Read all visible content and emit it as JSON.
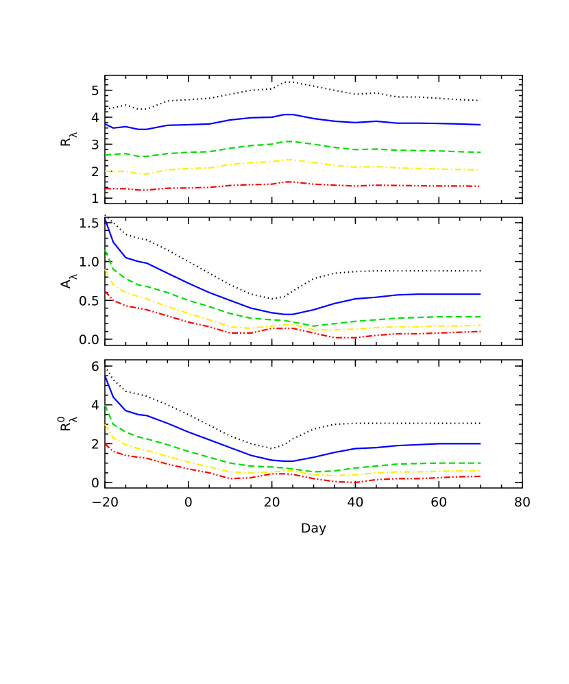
{
  "chart_data": [
    {
      "type": "line",
      "ylabel": {
        "text": "R",
        "sub": "λ"
      },
      "xlim": [
        -20,
        80
      ],
      "xticks": [
        -20,
        0,
        20,
        40,
        60,
        80
      ],
      "x_minor": 4,
      "show_xtick_labels": false,
      "ylim": [
        0.8,
        5.55
      ],
      "yticks": [
        1,
        2,
        3,
        4,
        5
      ],
      "y_minor": 5,
      "x": [
        -20,
        -18,
        -15,
        -12,
        -10,
        -5,
        0,
        5,
        10,
        15,
        20,
        23,
        25,
        30,
        35,
        40,
        45,
        50,
        55,
        60,
        65,
        70
      ],
      "series": [
        {
          "color": "#000000",
          "dash": "dotted",
          "values": [
            4.3,
            4.35,
            4.45,
            4.3,
            4.3,
            4.6,
            4.65,
            4.7,
            4.85,
            5.0,
            5.05,
            5.3,
            5.3,
            5.15,
            5.0,
            4.85,
            4.9,
            4.75,
            4.75,
            4.7,
            4.65,
            4.62
          ]
        },
        {
          "color": "#0000ff",
          "dash": "solid",
          "values": [
            3.75,
            3.6,
            3.65,
            3.55,
            3.55,
            3.7,
            3.72,
            3.75,
            3.9,
            3.98,
            4.0,
            4.1,
            4.1,
            3.95,
            3.85,
            3.8,
            3.85,
            3.78,
            3.78,
            3.77,
            3.75,
            3.72
          ]
        },
        {
          "color": "#00dd00",
          "dash": "dashed",
          "values": [
            2.6,
            2.62,
            2.65,
            2.55,
            2.55,
            2.65,
            2.7,
            2.72,
            2.85,
            2.95,
            3.0,
            3.1,
            3.1,
            3.0,
            2.88,
            2.8,
            2.82,
            2.78,
            2.76,
            2.75,
            2.72,
            2.7
          ]
        },
        {
          "color": "#ffee00",
          "dash": "dashdot",
          "values": [
            2.0,
            1.98,
            2.0,
            1.9,
            1.9,
            2.05,
            2.1,
            2.12,
            2.25,
            2.32,
            2.35,
            2.42,
            2.42,
            2.32,
            2.22,
            2.15,
            2.17,
            2.12,
            2.1,
            2.08,
            2.06,
            2.05
          ]
        },
        {
          "color": "#ff0000",
          "dash": "dashdotdot",
          "values": [
            1.35,
            1.35,
            1.35,
            1.3,
            1.3,
            1.37,
            1.38,
            1.4,
            1.47,
            1.5,
            1.52,
            1.6,
            1.6,
            1.52,
            1.48,
            1.45,
            1.48,
            1.47,
            1.46,
            1.45,
            1.45,
            1.44
          ]
        }
      ]
    },
    {
      "type": "line",
      "ylabel": {
        "text": "A",
        "sub": "λ"
      },
      "xlim": [
        -20,
        80
      ],
      "xticks": [
        -20,
        0,
        20,
        40,
        60,
        80
      ],
      "x_minor": 4,
      "show_xtick_labels": false,
      "ylim": [
        -0.08,
        1.57
      ],
      "yticks": [
        {
          "value": 0,
          "label": "0.0"
        },
        0.5,
        {
          "value": 1,
          "label": "1.0"
        },
        1.5
      ],
      "y_minor": 5,
      "x": [
        -20,
        -18,
        -15,
        -12,
        -10,
        -5,
        0,
        5,
        10,
        15,
        20,
        23,
        25,
        30,
        35,
        40,
        45,
        50,
        55,
        60,
        65,
        70
      ],
      "series": [
        {
          "color": "#000000",
          "dash": "dotted",
          "values": [
            1.6,
            1.5,
            1.35,
            1.3,
            1.28,
            1.15,
            1.0,
            0.85,
            0.7,
            0.58,
            0.52,
            0.55,
            0.62,
            0.78,
            0.85,
            0.87,
            0.88,
            0.88,
            0.88,
            0.88,
            0.88,
            0.88
          ]
        },
        {
          "color": "#0000ff",
          "dash": "solid",
          "values": [
            1.55,
            1.25,
            1.05,
            1.0,
            0.98,
            0.85,
            0.72,
            0.6,
            0.5,
            0.4,
            0.34,
            0.32,
            0.32,
            0.38,
            0.46,
            0.52,
            0.54,
            0.57,
            0.58,
            0.58,
            0.58,
            0.58
          ]
        },
        {
          "color": "#00dd00",
          "dash": "dashed",
          "values": [
            1.15,
            0.9,
            0.78,
            0.7,
            0.68,
            0.6,
            0.5,
            0.42,
            0.33,
            0.27,
            0.25,
            0.24,
            0.22,
            0.17,
            0.2,
            0.23,
            0.25,
            0.27,
            0.28,
            0.29,
            0.29,
            0.29
          ]
        },
        {
          "color": "#ffee00",
          "dash": "dashdot",
          "values": [
            0.9,
            0.7,
            0.6,
            0.55,
            0.52,
            0.42,
            0.33,
            0.25,
            0.16,
            0.14,
            0.17,
            0.19,
            0.19,
            0.12,
            0.12,
            0.13,
            0.15,
            0.16,
            0.16,
            0.17,
            0.17,
            0.18
          ]
        },
        {
          "color": "#ff0000",
          "dash": "dashdotdot",
          "values": [
            0.62,
            0.5,
            0.43,
            0.4,
            0.38,
            0.3,
            0.22,
            0.16,
            0.08,
            0.08,
            0.14,
            0.14,
            0.14,
            0.08,
            0.02,
            0.02,
            0.05,
            0.07,
            0.07,
            0.08,
            0.09,
            0.1
          ]
        }
      ]
    },
    {
      "type": "line",
      "ylabel": {
        "text": "R",
        "sup": "0",
        "sub": "λ"
      },
      "xlabel": "Day",
      "xlim": [
        -20,
        80
      ],
      "xticks": [
        {
          "value": -20,
          "label": "−20"
        },
        0,
        20,
        40,
        60,
        80
      ],
      "x_minor": 4,
      "show_xtick_labels": true,
      "ylim": [
        -0.28,
        6.32
      ],
      "yticks": [
        0,
        2,
        4,
        6
      ],
      "y_minor": 4,
      "x": [
        -20,
        -18,
        -15,
        -12,
        -10,
        -5,
        0,
        5,
        10,
        15,
        20,
        23,
        25,
        30,
        35,
        40,
        45,
        50,
        55,
        60,
        65,
        70
      ],
      "series": [
        {
          "color": "#000000",
          "dash": "dotted",
          "values": [
            6.0,
            5.3,
            4.7,
            4.55,
            4.45,
            4.0,
            3.5,
            2.95,
            2.4,
            2.0,
            1.75,
            1.95,
            2.25,
            2.75,
            3.0,
            3.05,
            3.05,
            3.05,
            3.05,
            3.05,
            3.05,
            3.05
          ]
        },
        {
          "color": "#0000ff",
          "dash": "solid",
          "values": [
            5.5,
            4.4,
            3.7,
            3.5,
            3.45,
            3.05,
            2.6,
            2.2,
            1.8,
            1.4,
            1.15,
            1.1,
            1.1,
            1.3,
            1.55,
            1.75,
            1.8,
            1.9,
            1.95,
            2.0,
            2.0,
            2.0
          ]
        },
        {
          "color": "#00dd00",
          "dash": "dashed",
          "values": [
            4.0,
            3.0,
            2.6,
            2.35,
            2.25,
            1.95,
            1.6,
            1.3,
            1.0,
            0.85,
            0.8,
            0.75,
            0.7,
            0.55,
            0.6,
            0.75,
            0.85,
            0.95,
            0.98,
            1.0,
            1.0,
            1.0
          ]
        },
        {
          "color": "#ffee00",
          "dash": "dashdot",
          "values": [
            3.0,
            2.3,
            1.95,
            1.75,
            1.65,
            1.35,
            1.05,
            0.8,
            0.55,
            0.5,
            0.55,
            0.6,
            0.6,
            0.4,
            0.35,
            0.4,
            0.5,
            0.55,
            0.55,
            0.58,
            0.6,
            0.6
          ]
        },
        {
          "color": "#ff0000",
          "dash": "dashdotdot",
          "values": [
            2.0,
            1.6,
            1.4,
            1.3,
            1.25,
            0.95,
            0.7,
            0.5,
            0.2,
            0.25,
            0.45,
            0.45,
            0.42,
            0.2,
            0.05,
            0.0,
            0.15,
            0.2,
            0.2,
            0.25,
            0.3,
            0.32
          ]
        }
      ]
    }
  ]
}
